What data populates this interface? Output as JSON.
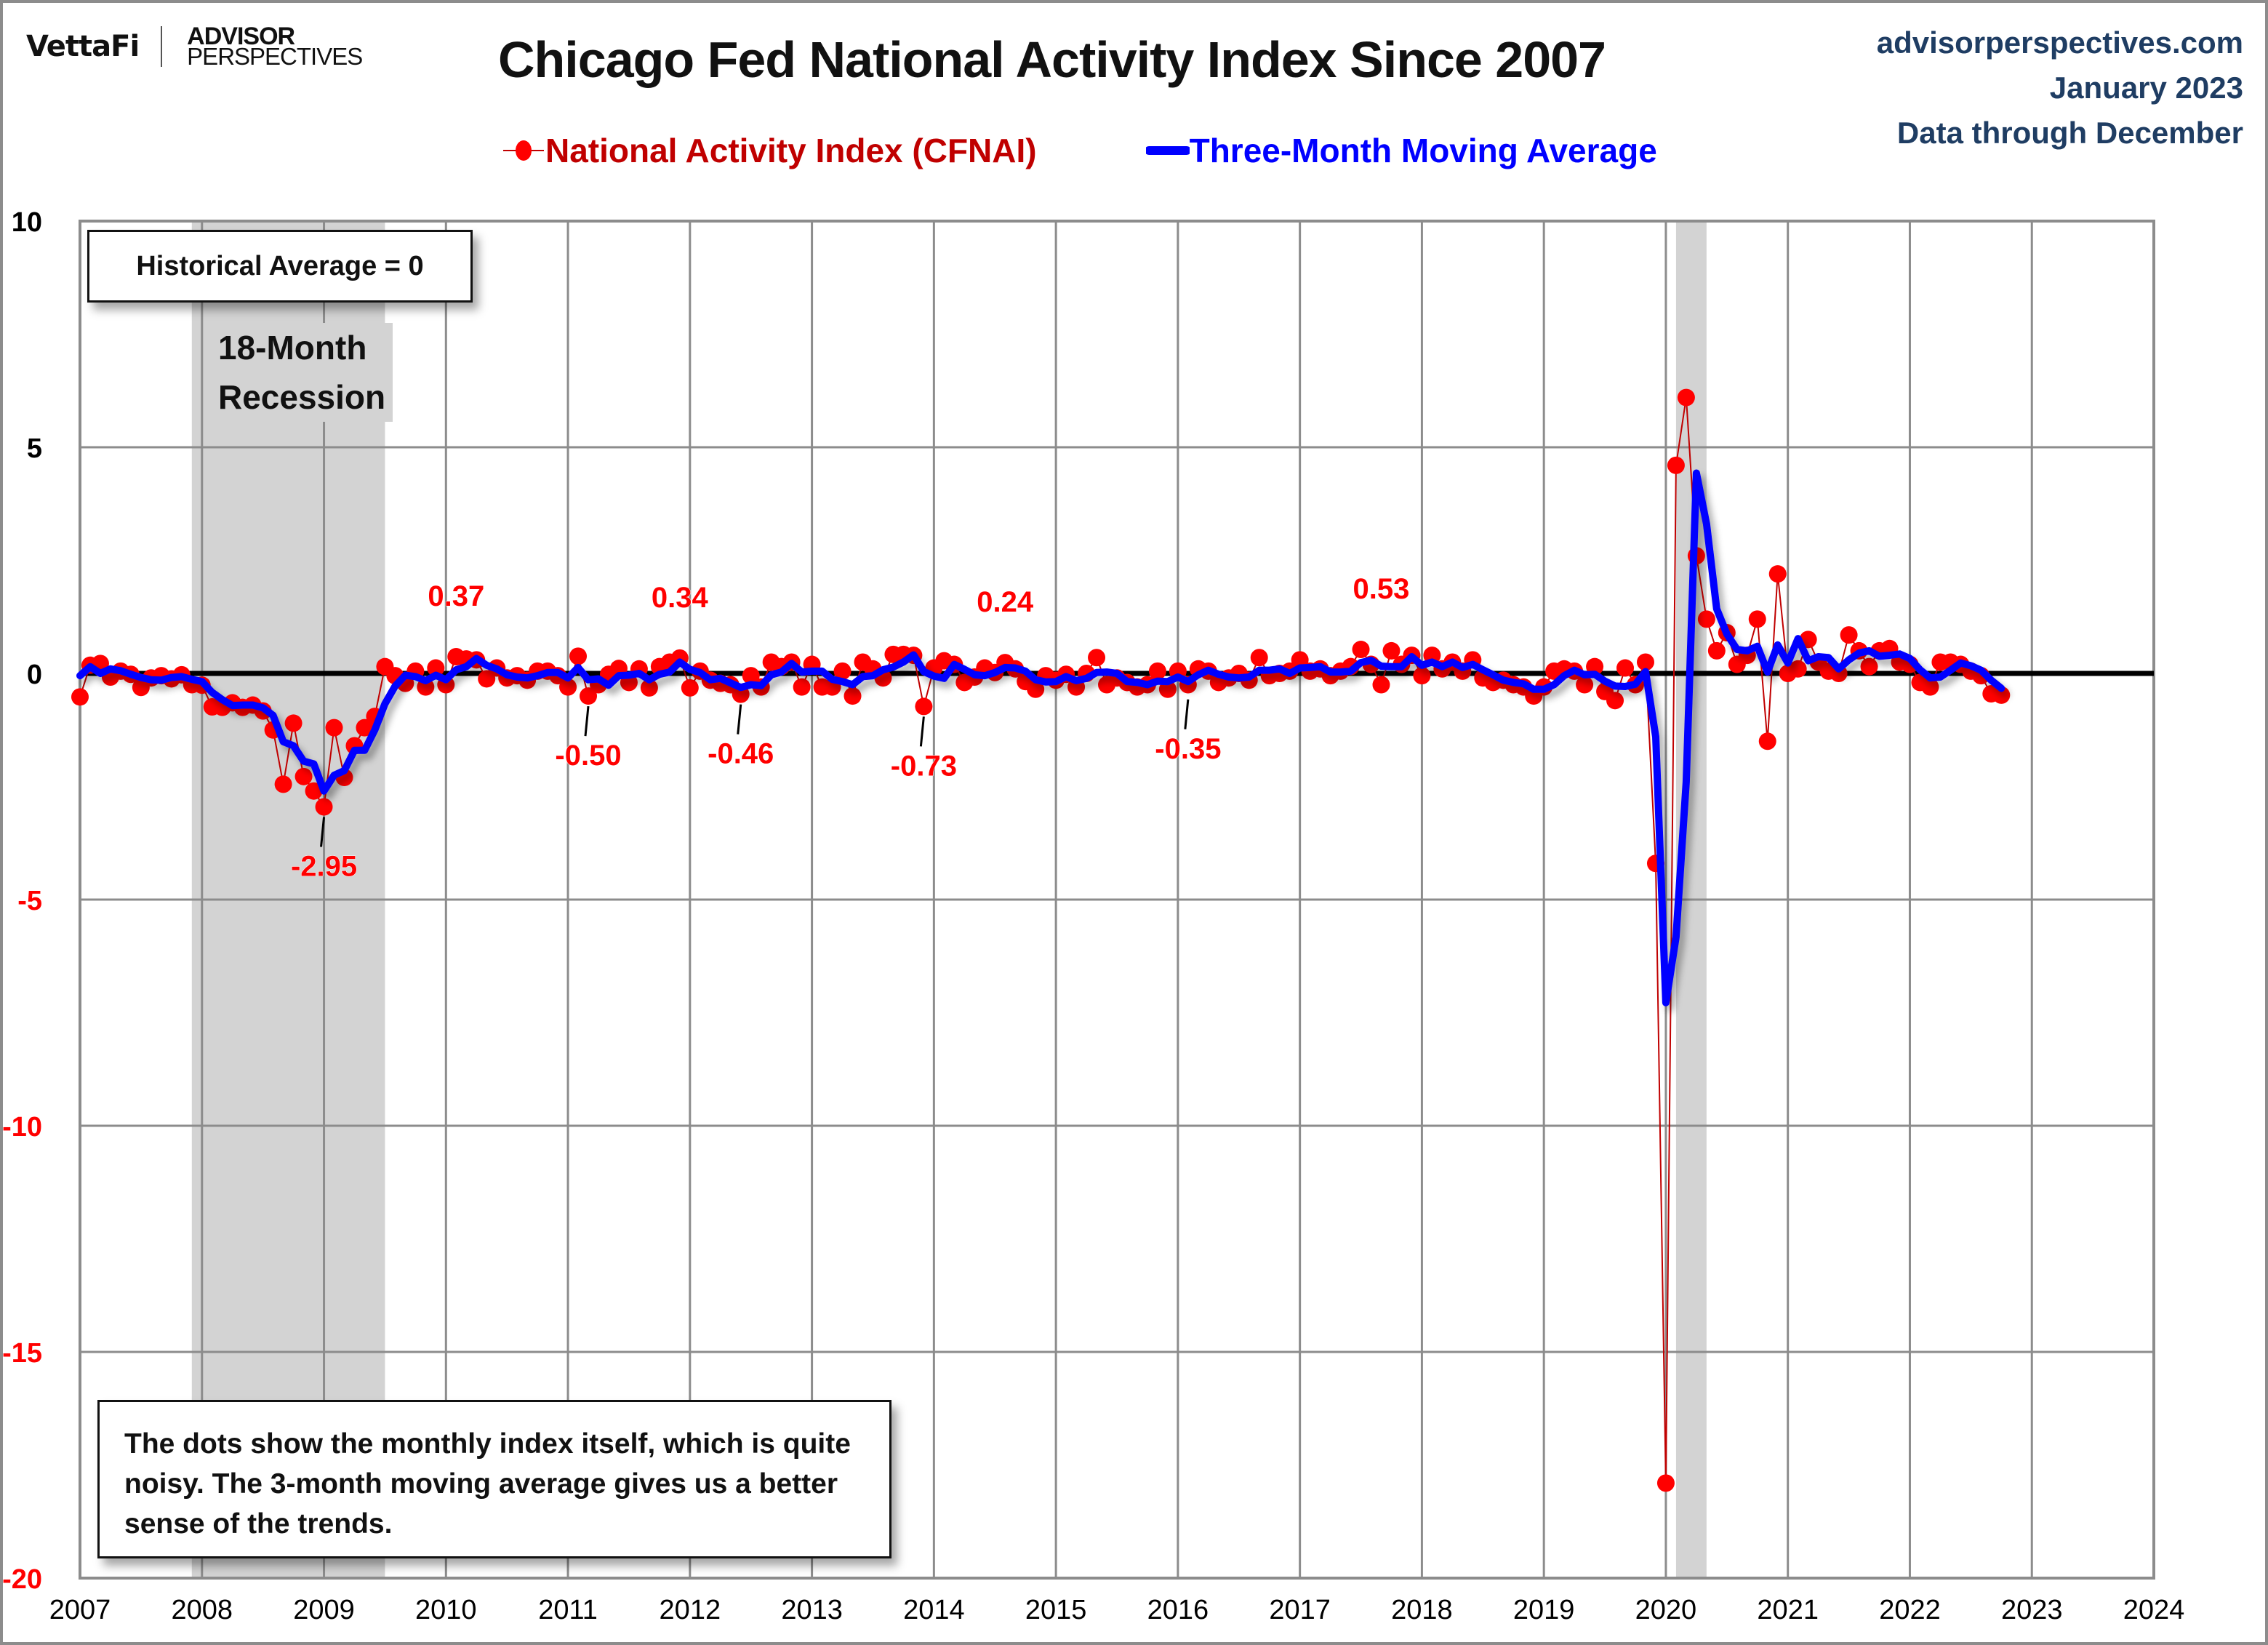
{
  "header": {
    "logo_brand": "VettaFi",
    "logo_line1": "ADVISOR",
    "logo_line2": "PERSPECTIVES",
    "title": "Chicago Fed National Activity Index Since 2007",
    "source_site": "advisorperspectives.com",
    "source_date": "January 2023",
    "source_note": "Data through December"
  },
  "legend": {
    "series1": "National Activity Index (CFNAI)",
    "series2": "Three-Month Moving Average"
  },
  "annotations": {
    "historical_average": "Historical Average = 0",
    "recession_line1": "18-Month",
    "recession_line2": "Recession",
    "note": "The dots show the monthly  index itself, which is quite noisy. The 3-month moving average gives us a better sense of the trends."
  },
  "colors": {
    "index": "#ff0000",
    "index_line": "#c00000",
    "moving_average": "#0000ff",
    "recession": "#d3d3d3",
    "gridline": "#8c8c8c",
    "source_text": "#1f3d63"
  },
  "chart_data": {
    "type": "line",
    "title": "Chicago Fed National Activity Index Since 2007",
    "xlabel": "",
    "ylabel": "",
    "xlim": [
      2007,
      2024
    ],
    "ylim": [
      -20,
      10
    ],
    "x_ticks": [
      "2007",
      "2008",
      "2009",
      "2010",
      "2011",
      "2012",
      "2013",
      "2014",
      "2015",
      "2016",
      "2017",
      "2018",
      "2019",
      "2020",
      "2021",
      "2022",
      "2023",
      "2024"
    ],
    "y_ticks": [
      10,
      5,
      0,
      -5,
      -10,
      -15,
      -20
    ],
    "y_tick_labels": [
      "10",
      "5",
      "0",
      "-5",
      "-10",
      "-15",
      "-20"
    ],
    "grid": true,
    "legend_position": "top",
    "reference_line": 0,
    "recessions": [
      {
        "start": "2007-12",
        "end": "2009-06"
      },
      {
        "start": "2020-02",
        "end": "2020-04"
      }
    ],
    "start_month": "2007-01",
    "series": [
      {
        "name": "National Activity Index (CFNAI)",
        "style": "dots",
        "values": [
          -0.52,
          0.18,
          0.22,
          -0.08,
          0.05,
          -0.02,
          -0.31,
          -0.1,
          -0.05,
          -0.12,
          -0.03,
          -0.25,
          -0.26,
          -0.74,
          -0.75,
          -0.65,
          -0.75,
          -0.7,
          -0.83,
          -1.25,
          -2.45,
          -1.1,
          -2.28,
          -2.6,
          -2.95,
          -1.2,
          -2.3,
          -1.6,
          -1.2,
          -0.95,
          0.15,
          -0.05,
          -0.22,
          0.05,
          -0.3,
          0.12,
          -0.25,
          0.37,
          0.32,
          0.3,
          -0.12,
          0.12,
          -0.1,
          -0.05,
          -0.15,
          0.05,
          0.05,
          -0.05,
          -0.3,
          0.38,
          -0.5,
          -0.25,
          -0.02,
          0.11,
          -0.2,
          0.1,
          -0.32,
          0.15,
          0.25,
          0.34,
          -0.32,
          0.05,
          -0.15,
          -0.22,
          -0.25,
          -0.46,
          -0.05,
          -0.3,
          0.25,
          0.15,
          0.25,
          -0.3,
          0.2,
          -0.3,
          -0.3,
          0.05,
          -0.5,
          0.25,
          0.1,
          -0.1,
          0.42,
          0.42,
          0.4,
          -0.73,
          0.12,
          0.28,
          0.2,
          -0.2,
          -0.08,
          0.12,
          0.02,
          0.24,
          0.1,
          -0.18,
          -0.35,
          -0.05,
          -0.15,
          -0.02,
          -0.3,
          0.0,
          0.35,
          -0.25,
          -0.1,
          -0.2,
          -0.3,
          -0.25,
          0.05,
          -0.35,
          0.05,
          -0.25,
          0.1,
          0.05,
          -0.2,
          -0.1,
          0.0,
          -0.15,
          0.35,
          -0.05,
          0.0,
          0.05,
          0.3,
          0.05,
          0.1,
          -0.05,
          0.05,
          0.15,
          0.53,
          0.2,
          -0.25,
          0.5,
          0.2,
          0.4,
          -0.05,
          0.4,
          0.1,
          0.25,
          0.05,
          0.3,
          -0.1,
          -0.2,
          -0.15,
          -0.25,
          -0.3,
          -0.5,
          -0.3,
          0.05,
          0.1,
          0.05,
          -0.25,
          0.15,
          -0.4,
          -0.6,
          0.12,
          -0.25,
          0.25,
          -4.2,
          -17.9,
          4.6,
          6.1,
          2.6,
          1.2,
          0.5,
          0.9,
          0.2,
          0.4,
          1.2,
          -1.5,
          2.2,
          0.0,
          0.1,
          0.75,
          0.25,
          0.05,
          0.0,
          0.85,
          0.5,
          0.15,
          0.5,
          0.55,
          0.25,
          0.2,
          -0.2,
          -0.3,
          0.25,
          0.25,
          0.2,
          0.05,
          -0.05,
          -0.45,
          -0.48
        ]
      },
      {
        "name": "Three-Month Moving Average",
        "style": "line",
        "values": [
          -0.05,
          0.15,
          0.0,
          0.1,
          0.06,
          -0.02,
          -0.09,
          -0.14,
          -0.15,
          -0.09,
          -0.07,
          -0.13,
          -0.18,
          -0.42,
          -0.58,
          -0.71,
          -0.7,
          -0.7,
          -0.76,
          -0.93,
          -1.51,
          -1.6,
          -1.94,
          -2.0,
          -2.6,
          -2.25,
          -2.15,
          -1.7,
          -1.7,
          -1.25,
          -0.67,
          -0.28,
          -0.04,
          -0.07,
          -0.16,
          -0.04,
          -0.14,
          0.08,
          0.15,
          0.33,
          0.18,
          0.1,
          -0.03,
          -0.08,
          -0.1,
          -0.05,
          0.02,
          0.02,
          -0.1,
          0.13,
          -0.14,
          -0.12,
          -0.26,
          -0.05,
          -0.04,
          0.0,
          -0.14,
          -0.02,
          0.03,
          0.25,
          0.09,
          0.02,
          -0.14,
          -0.11,
          -0.21,
          -0.31,
          -0.25,
          -0.27,
          -0.03,
          0.03,
          0.22,
          0.03,
          0.05,
          0.05,
          -0.13,
          -0.18,
          -0.25,
          -0.07,
          -0.05,
          0.08,
          0.14,
          0.25,
          0.41,
          0.04,
          -0.06,
          -0.11,
          0.2,
          0.09,
          -0.03,
          -0.05,
          0.02,
          0.13,
          0.12,
          0.05,
          -0.14,
          -0.19,
          -0.18,
          -0.07,
          -0.16,
          -0.11,
          0.02,
          0.03,
          0.0,
          -0.18,
          -0.2,
          -0.25,
          -0.17,
          -0.18,
          -0.08,
          -0.18,
          -0.03,
          0.07,
          -0.02,
          -0.08,
          -0.1,
          -0.08,
          0.07,
          0.07,
          0.1,
          0.0,
          0.12,
          0.13,
          0.15,
          0.03,
          0.03,
          0.05,
          0.24,
          0.29,
          0.16,
          0.15,
          0.15,
          0.37,
          0.18,
          0.25,
          0.15,
          0.25,
          0.13,
          0.2,
          0.08,
          -0.03,
          -0.15,
          -0.2,
          -0.23,
          -0.35,
          -0.35,
          -0.25,
          -0.05,
          0.07,
          -0.03,
          -0.02,
          -0.17,
          -0.28,
          -0.29,
          -0.24,
          0.04,
          -1.4,
          -7.28,
          -5.83,
          -2.4,
          4.43,
          3.3,
          1.43,
          0.87,
          0.53,
          0.5,
          0.6,
          0.03,
          0.63,
          0.23,
          0.77,
          0.28,
          0.37,
          0.35,
          0.1,
          0.3,
          0.45,
          0.5,
          0.38,
          0.4,
          0.43,
          0.33,
          0.08,
          -0.1,
          -0.08,
          0.07,
          0.23,
          0.17,
          0.07,
          -0.15,
          -0.33
        ]
      }
    ],
    "data_labels": [
      {
        "month": "2009-01",
        "value": -2.95,
        "text": "-2.95",
        "position": "below"
      },
      {
        "month": "2010-02",
        "value": 0.37,
        "text": "0.37",
        "position": "above"
      },
      {
        "month": "2011-03",
        "value": -0.5,
        "text": "-0.50",
        "position": "below"
      },
      {
        "month": "2011-12",
        "value": 0.34,
        "text": "0.34",
        "position": "above"
      },
      {
        "month": "2012-06",
        "value": -0.46,
        "text": "-0.46",
        "position": "below"
      },
      {
        "month": "2013-12",
        "value": -0.73,
        "text": "-0.73",
        "position": "below"
      },
      {
        "month": "2014-08",
        "value": 0.24,
        "text": "0.24",
        "position": "above"
      },
      {
        "month": "2016-02",
        "value": -0.35,
        "text": "-0.35",
        "position": "below"
      },
      {
        "month": "2017-09",
        "value": 0.53,
        "text": "0.53",
        "position": "above"
      }
    ]
  }
}
